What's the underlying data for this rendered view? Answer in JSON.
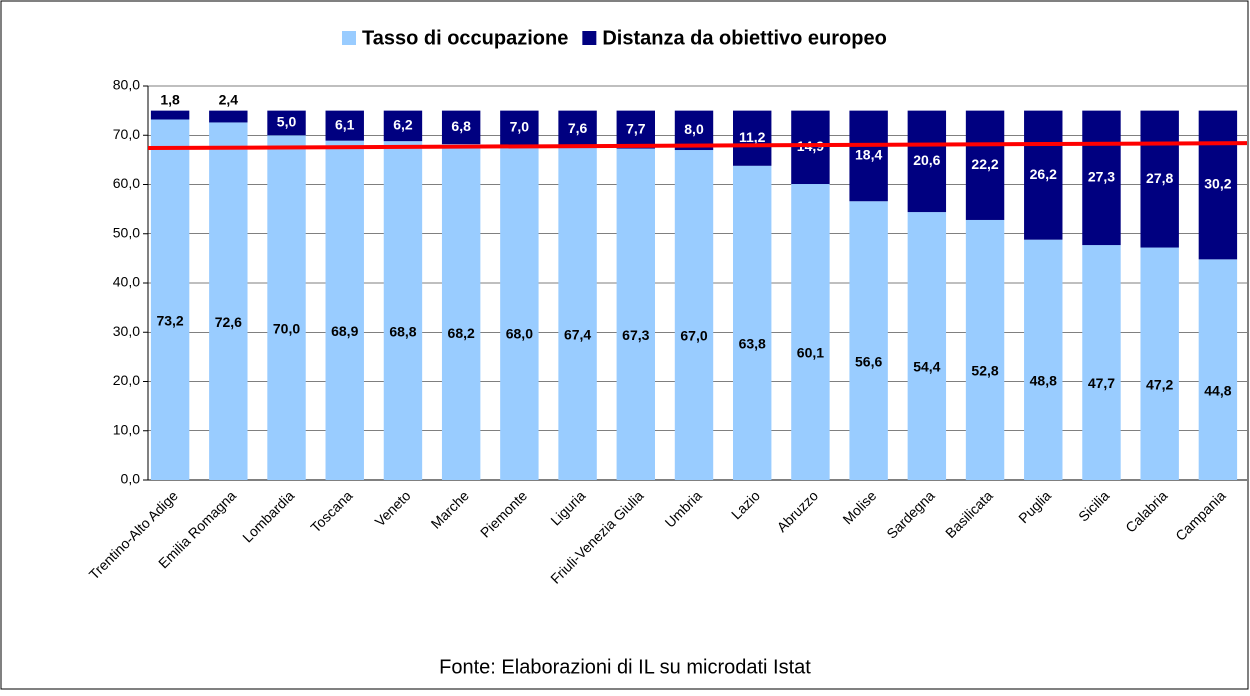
{
  "chart_data": {
    "type": "stacked-bar",
    "source": "Fonte: Elaborazioni di IL su microdati Istat",
    "categories": [
      "Trentino-Alto Adige",
      "Emilia Romagna",
      "Lombardia",
      "Toscana",
      "Veneto",
      "Marche",
      "Piemonte",
      "Liguria",
      "Friuli-Venezia Giulia",
      "Umbria",
      "Lazio",
      "Abruzzo",
      "Molise",
      "Sardegna",
      "Basilicata",
      "Puglia",
      "Sicilia",
      "Calabria",
      "Campania"
    ],
    "series": [
      {
        "name": "Tasso di occupazione",
        "color": "#99ccff",
        "values": [
          73.2,
          72.6,
          70.0,
          68.9,
          68.8,
          68.2,
          68.0,
          67.4,
          67.3,
          67.0,
          63.8,
          60.1,
          56.6,
          54.4,
          52.8,
          48.8,
          47.7,
          47.2,
          44.8
        ],
        "value_labels": [
          "73,2",
          "72,6",
          "70,0",
          "68,9",
          "68,8",
          "68,2",
          "68,0",
          "67,4",
          "67,3",
          "67,0",
          "63,8",
          "60,1",
          "56,6",
          "54,4",
          "52,8",
          "48,8",
          "47,7",
          "47,2",
          "44,8"
        ]
      },
      {
        "name": "Distanza da obiettivo europeo",
        "color": "#000080",
        "values": [
          1.8,
          2.4,
          5.0,
          6.1,
          6.2,
          6.8,
          7.0,
          7.6,
          7.7,
          8.0,
          11.2,
          14.9,
          18.4,
          20.6,
          22.2,
          26.2,
          27.3,
          27.8,
          30.2
        ],
        "value_labels": [
          "1,8",
          "2,4",
          "5,0",
          "6,1",
          "6,2",
          "6,8",
          "7,0",
          "7,6",
          "7,7",
          "8,0",
          "11,2",
          "14,9",
          "18,4",
          "20,6",
          "22,2",
          "26,2",
          "27,3",
          "27,8",
          "30,2"
        ]
      }
    ],
    "ylim": [
      0,
      80
    ],
    "yticks": [
      {
        "value": 0,
        "label": "0,0"
      },
      {
        "value": 10,
        "label": "10,0"
      },
      {
        "value": 20,
        "label": "20,0"
      },
      {
        "value": 30,
        "label": "30,0"
      },
      {
        "value": 40,
        "label": "40,0"
      },
      {
        "value": 50,
        "label": "50,0"
      },
      {
        "value": 60,
        "label": "60,0"
      },
      {
        "value": 70,
        "label": "70,0"
      },
      {
        "value": 80,
        "label": "80,0"
      }
    ],
    "grid": true,
    "legend": "top",
    "reference_line": {
      "color": "#ff0000",
      "values": [
        67.4,
        68.4
      ]
    }
  }
}
